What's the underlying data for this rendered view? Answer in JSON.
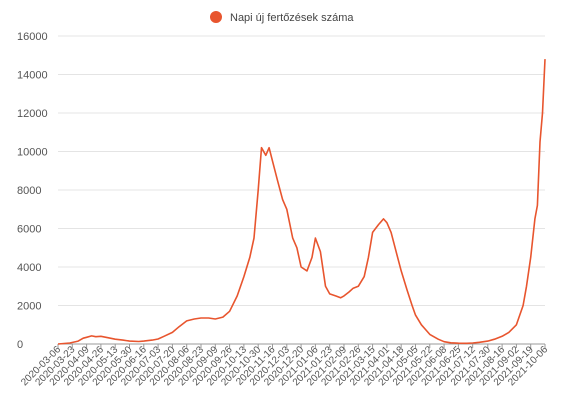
{
  "chart_data": {
    "type": "line",
    "title": "",
    "xlabel": "",
    "ylabel": "",
    "legend": {
      "placement": "top-center",
      "label": "Napi új fertőzések száma"
    },
    "ylim": [
      0,
      16000
    ],
    "y_ticks": [
      "0",
      "2000",
      "4000",
      "6000",
      "8000",
      "10000",
      "12000",
      "14000",
      "16000"
    ],
    "x_start": "2020-03-06",
    "x_end": "2021-10-06",
    "x_ticks": [
      "2020-03-06",
      "2020-03-23",
      "2020-04-09",
      "2020-04-26",
      "2020-05-13",
      "2020-05-30",
      "2020-06-16",
      "2020-07-03",
      "2020-07-20",
      "2020-08-06",
      "2020-08-23",
      "2020-09-09",
      "2020-09-26",
      "2020-10-13",
      "2020-10-30",
      "2020-11-16",
      "2020-12-03",
      "2020-12-20",
      "2021-01-06",
      "2021-01-23",
      "2021-02-09",
      "2021-02-26",
      "2021-03-15",
      "2021-04-01",
      "2021-04-18",
      "2021-05-05",
      "2021-05-22",
      "2021-06-08",
      "2021-06-25",
      "2021-07-12",
      "2021-07-30",
      "2021-08-16",
      "2021-09-02",
      "2021-09-19",
      "2021-10-06"
    ],
    "grid": true,
    "series": [
      {
        "name": "Napi új fertőzések száma",
        "color": "#e8552e",
        "points": [
          [
            "2020-03-06",
            0
          ],
          [
            "2020-03-20",
            50
          ],
          [
            "2020-03-30",
            150
          ],
          [
            "2020-04-05",
            300
          ],
          [
            "2020-04-09",
            350
          ],
          [
            "2020-04-15",
            420
          ],
          [
            "2020-04-20",
            380
          ],
          [
            "2020-04-26",
            400
          ],
          [
            "2020-05-05",
            320
          ],
          [
            "2020-05-13",
            250
          ],
          [
            "2020-05-22",
            200
          ],
          [
            "2020-05-30",
            150
          ],
          [
            "2020-06-10",
            130
          ],
          [
            "2020-06-16",
            150
          ],
          [
            "2020-06-26",
            200
          ],
          [
            "2020-07-03",
            260
          ],
          [
            "2020-07-10",
            400
          ],
          [
            "2020-07-20",
            600
          ],
          [
            "2020-07-28",
            900
          ],
          [
            "2020-08-06",
            1200
          ],
          [
            "2020-08-15",
            1300
          ],
          [
            "2020-08-23",
            1350
          ],
          [
            "2020-09-01",
            1350
          ],
          [
            "2020-09-09",
            1300
          ],
          [
            "2020-09-18",
            1400
          ],
          [
            "2020-09-26",
            1700
          ],
          [
            "2020-10-05",
            2500
          ],
          [
            "2020-10-13",
            3500
          ],
          [
            "2020-10-20",
            4500
          ],
          [
            "2020-10-25",
            5500
          ],
          [
            "2020-10-30",
            8000
          ],
          [
            "2020-11-03",
            10200
          ],
          [
            "2020-11-08",
            9800
          ],
          [
            "2020-11-12",
            10200
          ],
          [
            "2020-11-16",
            9500
          ],
          [
            "2020-11-22",
            8500
          ],
          [
            "2020-11-28",
            7500
          ],
          [
            "2020-12-03",
            7000
          ],
          [
            "2020-12-10",
            5500
          ],
          [
            "2020-12-15",
            5000
          ],
          [
            "2020-12-20",
            4000
          ],
          [
            "2020-12-27",
            3800
          ],
          [
            "2021-01-02",
            4500
          ],
          [
            "2021-01-06",
            5500
          ],
          [
            "2021-01-12",
            4800
          ],
          [
            "2021-01-18",
            3000
          ],
          [
            "2021-01-23",
            2600
          ],
          [
            "2021-01-30",
            2500
          ],
          [
            "2021-02-05",
            2400
          ],
          [
            "2021-02-09",
            2500
          ],
          [
            "2021-02-15",
            2700
          ],
          [
            "2021-02-20",
            2900
          ],
          [
            "2021-02-26",
            3000
          ],
          [
            "2021-03-05",
            3500
          ],
          [
            "2021-03-10",
            4500
          ],
          [
            "2021-03-15",
            5800
          ],
          [
            "2021-03-22",
            6200
          ],
          [
            "2021-03-28",
            6500
          ],
          [
            "2021-04-01",
            6300
          ],
          [
            "2021-04-06",
            5800
          ],
          [
            "2021-04-12",
            4800
          ],
          [
            "2021-04-18",
            3800
          ],
          [
            "2021-04-25",
            2800
          ],
          [
            "2021-05-01",
            2000
          ],
          [
            "2021-05-05",
            1500
          ],
          [
            "2021-05-12",
            1000
          ],
          [
            "2021-05-18",
            700
          ],
          [
            "2021-05-22",
            500
          ],
          [
            "2021-06-01",
            250
          ],
          [
            "2021-06-08",
            120
          ],
          [
            "2021-06-16",
            60
          ],
          [
            "2021-06-25",
            40
          ],
          [
            "2021-07-05",
            35
          ],
          [
            "2021-07-12",
            50
          ],
          [
            "2021-07-20",
            90
          ],
          [
            "2021-07-30",
            150
          ],
          [
            "2021-08-07",
            250
          ],
          [
            "2021-08-16",
            400
          ],
          [
            "2021-08-24",
            600
          ],
          [
            "2021-09-02",
            1000
          ],
          [
            "2021-09-10",
            2000
          ],
          [
            "2021-09-14",
            3000
          ],
          [
            "2021-09-19",
            4500
          ],
          [
            "2021-09-24",
            6500
          ],
          [
            "2021-09-27",
            7200
          ],
          [
            "2021-09-30",
            10500
          ],
          [
            "2021-10-03",
            12000
          ],
          [
            "2021-10-06",
            14800
          ]
        ]
      }
    ]
  }
}
